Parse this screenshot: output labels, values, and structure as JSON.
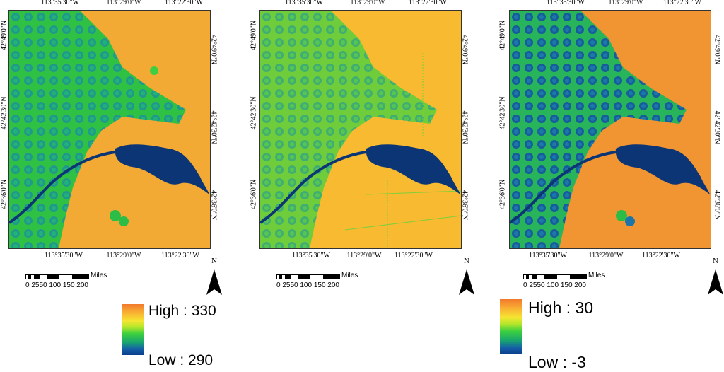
{
  "panels": [
    {
      "coords_top": [
        "113°35'30\"W",
        "113°29'0\"W",
        "113°22'30\"W"
      ],
      "coords_bottom": [
        "113°35'30\"W",
        "113°29'0\"W",
        "113°22'30\"W"
      ],
      "coords_left": [
        "42°49'0\"N",
        "42°42'30\"N",
        "42°36'0\"N"
      ],
      "coords_right": [
        "42°49'0\"N",
        "42°42'30\"N",
        "42°36'0\"N"
      ],
      "scale_unit": "Miles",
      "scale_labels": "0 2550 100 150 200",
      "north_label": "N",
      "legend_high": "High : 330",
      "legend_low": "Low : 290"
    },
    {
      "coords_top": [
        "113°35'30\"W",
        "113°29'0\"W",
        "113°22'30\"W"
      ],
      "coords_bottom": [
        "113°35'30\"W",
        "113°29'0\"W",
        "113°22'30\"W"
      ],
      "coords_left": [
        "42°49'0\"N",
        "42°42'30\"N",
        "42°36'0\"N"
      ],
      "coords_right": [
        "42°49'0\"N",
        "42°42'30\"N",
        "42°36'0\"N"
      ],
      "scale_unit": "Miles",
      "scale_labels": "0 2550 100 150 200",
      "north_label": "N"
    },
    {
      "coords_top": [
        "113°35'30\"W",
        "113°29'0\"W",
        "113°22'30\"W"
      ],
      "coords_bottom": [
        "113°35'30\"W",
        "113°29'0\"W",
        "113°22'30\"W"
      ],
      "coords_left": [
        "42°49'0\"N",
        "42°42'30\"N",
        "42°36'0\"N"
      ],
      "coords_right": [
        "42°49'0\"N",
        "42°42'30\"N",
        "42°36'0\"N"
      ],
      "scale_unit": "Miles",
      "scale_labels": "0 2550 100 150 200",
      "north_label": "N",
      "legend_high": "High : 30",
      "legend_low": "Low : -3"
    }
  ],
  "colors": {
    "high": "#f27a2e",
    "mid_high": "#f9b433",
    "mid": "#f5e531",
    "mid_low": "#3ccf3f",
    "low": "#0a3e8c",
    "water": "#0b3575"
  }
}
